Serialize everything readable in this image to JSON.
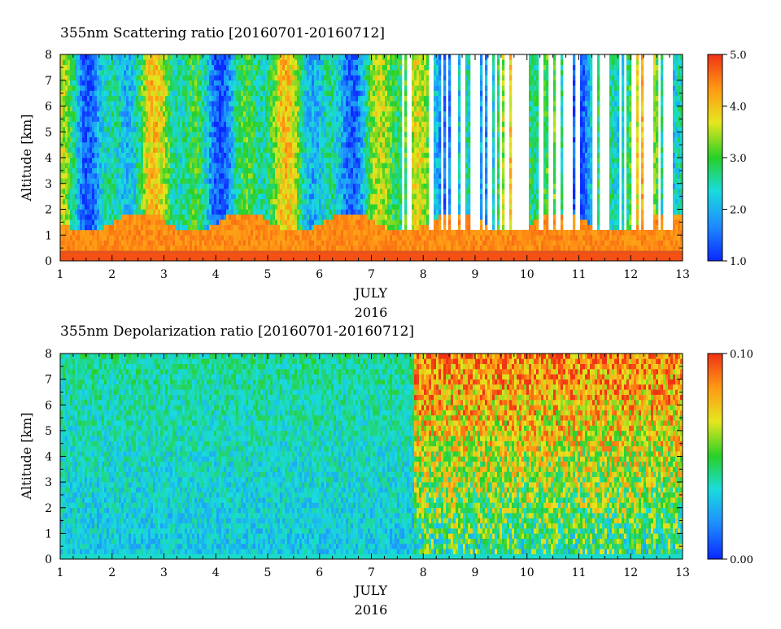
{
  "chart_data": [
    {
      "type": "heatmap",
      "title": "355nm Scattering ratio [20160701-20160712]",
      "ylabel": "Altitude [km]",
      "xlabel": [
        "JULY",
        "2016"
      ],
      "x_ticks": [
        "1",
        "2",
        "3",
        "4",
        "5",
        "6",
        "7",
        "8",
        "9",
        "10",
        "11",
        "12",
        "13"
      ],
      "xlim": [
        1,
        13
      ],
      "y_ticks": [
        "0",
        "1",
        "2",
        "3",
        "4",
        "5",
        "6",
        "7",
        "8"
      ],
      "ylim": [
        0,
        8
      ],
      "colorbar": {
        "ticks": [
          "1.0",
          "2.0",
          "3.0",
          "4.0",
          "5.0"
        ],
        "range": [
          1.0,
          5.0
        ]
      },
      "colormap": [
        "#0a28ff",
        "#1e8cff",
        "#19dcdc",
        "#28d028",
        "#e6e61e",
        "#ff9614",
        "#f03214"
      ],
      "reference_line": {
        "altitude_km": 0.35,
        "color": "#d25a28"
      }
    },
    {
      "type": "heatmap",
      "title": "355nm Depolarization ratio [20160701-20160712]",
      "ylabel": "Altitude [km]",
      "xlabel": [
        "JULY",
        "2016"
      ],
      "x_ticks": [
        "1",
        "2",
        "3",
        "4",
        "5",
        "6",
        "7",
        "8",
        "9",
        "10",
        "11",
        "12",
        "13"
      ],
      "xlim": [
        1,
        13
      ],
      "y_ticks": [
        "0",
        "1",
        "2",
        "3",
        "4",
        "5",
        "6",
        "7",
        "8"
      ],
      "ylim": [
        0,
        8
      ],
      "colorbar": {
        "ticks": [
          "0.00",
          "0.10"
        ],
        "range": [
          0.0,
          0.1
        ]
      },
      "colormap": [
        "#0a28ff",
        "#1e8cff",
        "#19dcdc",
        "#28d028",
        "#e6e61e",
        "#ff9614",
        "#f03214"
      ]
    }
  ]
}
